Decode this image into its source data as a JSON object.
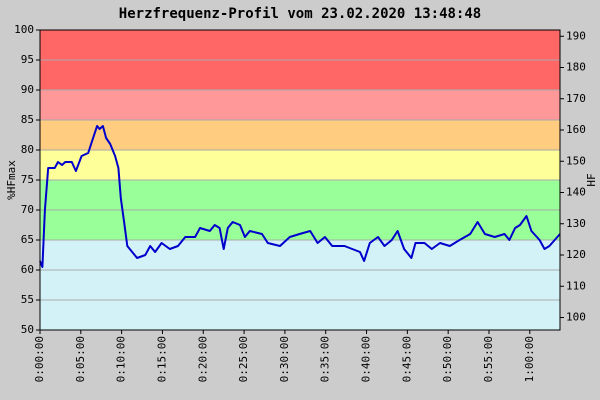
{
  "chart_data": {
    "type": "line",
    "title": "Herzfrequenz-Profil vom 23.02.2020 13:48:48",
    "ylabel": "%HFmax",
    "y2label": "HF",
    "xlim": [
      0,
      63.7
    ],
    "xticks": [
      {
        "value": 0,
        "label": "0:00:00"
      },
      {
        "value": 5,
        "label": "0:05:00"
      },
      {
        "value": 10,
        "label": "0:10:00"
      },
      {
        "value": 15,
        "label": "0:15:00"
      },
      {
        "value": 20,
        "label": "0:20:00"
      },
      {
        "value": 25,
        "label": "0:25:00"
      },
      {
        "value": 30,
        "label": "0:30:00"
      },
      {
        "value": 35,
        "label": "0:35:00"
      },
      {
        "value": 40,
        "label": "0:40:00"
      },
      {
        "value": 45,
        "label": "0:45:00"
      },
      {
        "value": 50,
        "label": "0:50:00"
      },
      {
        "value": 55,
        "label": "0:55:00"
      },
      {
        "value": 60,
        "label": "1:00:00"
      }
    ],
    "ylim": [
      50,
      100
    ],
    "yticks": [
      50,
      55,
      60,
      65,
      70,
      75,
      80,
      85,
      90,
      95,
      100
    ],
    "y2lim": [
      96,
      192
    ],
    "y2ticks": [
      100,
      110,
      120,
      130,
      140,
      150,
      160,
      170,
      180,
      190
    ],
    "grid": true,
    "zones": [
      {
        "from": 50,
        "to": 65,
        "color": "#d2f2f8"
      },
      {
        "from": 65,
        "to": 75,
        "color": "#99ff99"
      },
      {
        "from": 75,
        "to": 80,
        "color": "#ffff99"
      },
      {
        "from": 80,
        "to": 85,
        "color": "#ffcc80"
      },
      {
        "from": 85,
        "to": 90,
        "color": "#ff9999"
      },
      {
        "from": 90,
        "to": 100,
        "color": "#ff6666"
      }
    ],
    "series": [
      {
        "color": "#0000cc",
        "x": [
          0,
          0.3,
          0.6,
          1.0,
          1.8,
          2.2,
          2.7,
          3.1,
          3.9,
          4.4,
          5.1,
          5.9,
          6.5,
          7.0,
          7.3,
          7.7,
          8.1,
          8.6,
          9.2,
          9.6,
          9.9,
          10.3,
          10.7,
          11.3,
          11.9,
          12.9,
          13.5,
          14.1,
          14.9,
          15.9,
          16.9,
          17.8,
          19.0,
          19.6,
          20.8,
          21.4,
          22.0,
          22.5,
          23.0,
          23.6,
          24.5,
          25.1,
          25.7,
          27.2,
          27.9,
          29.4,
          30.6,
          31.8,
          33.1,
          34.0,
          34.9,
          35.8,
          37.3,
          39.2,
          39.7,
          40.4,
          41.4,
          42.2,
          43.1,
          43.8,
          44.6,
          45.5,
          46.0,
          47.1,
          48.0,
          49.0,
          50.2,
          51.4,
          52.7,
          53.6,
          54.5,
          55.7,
          56.9,
          57.5,
          58.2,
          58.8,
          59.6,
          60.2,
          61.2,
          61.8,
          62.4,
          63.7
        ],
        "values": [
          61.5,
          60.5,
          70,
          77,
          77,
          78,
          77.5,
          78,
          78,
          76.5,
          79,
          79.5,
          82,
          84,
          83.5,
          84,
          82,
          81,
          79,
          77,
          72,
          68,
          64,
          63,
          62,
          62.5,
          64,
          63,
          64.5,
          63.5,
          64,
          65.5,
          65.5,
          67,
          66.5,
          67.5,
          67,
          63.5,
          67,
          68,
          67.5,
          65.5,
          66.5,
          66,
          64.5,
          64,
          65.5,
          66,
          66.5,
          64.5,
          65.5,
          64,
          64,
          63,
          61.5,
          64.5,
          65.5,
          64,
          65,
          66.5,
          63.5,
          62,
          64.5,
          64.5,
          63.5,
          64.5,
          64,
          65,
          66,
          68,
          66,
          65.5,
          66,
          65,
          67,
          67.5,
          69,
          66.5,
          65,
          63.5,
          64,
          66
        ]
      }
    ]
  }
}
